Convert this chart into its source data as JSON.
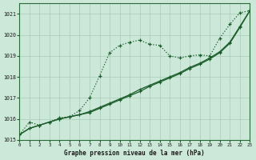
{
  "xlabel": "Graphe pression niveau de la mer (hPa)",
  "xlim": [
    0,
    23
  ],
  "ylim": [
    1015,
    1021.5
  ],
  "yticks": [
    1015,
    1016,
    1017,
    1018,
    1019,
    1020,
    1021
  ],
  "xticks": [
    0,
    1,
    2,
    3,
    4,
    5,
    6,
    7,
    8,
    9,
    10,
    11,
    12,
    13,
    14,
    15,
    16,
    17,
    18,
    19,
    20,
    21,
    22,
    23
  ],
  "background_color": "#cce8d8",
  "grid_color": "#a8ccb8",
  "line_color": "#1a5c2a",
  "series1_x": [
    0,
    1,
    2,
    3,
    4,
    5,
    6,
    7,
    8,
    9,
    10,
    11,
    12,
    13,
    14,
    15,
    16,
    17,
    18,
    19,
    20,
    21,
    22,
    23
  ],
  "series1_y": [
    1015.25,
    1015.85,
    1015.7,
    1015.85,
    1016.05,
    1016.1,
    1016.4,
    1017.0,
    1018.05,
    1019.15,
    1019.5,
    1019.65,
    1019.75,
    1019.55,
    1019.5,
    1019.0,
    1018.9,
    1019.0,
    1019.05,
    1019.0,
    1019.85,
    1020.5,
    1021.05,
    1021.15
  ],
  "series2_x": [
    0,
    1,
    2,
    3,
    4,
    5,
    6,
    7,
    8,
    9,
    10,
    11,
    12,
    13,
    14,
    15,
    16,
    17,
    18,
    19,
    20,
    21,
    22,
    23
  ],
  "series2_y": [
    1015.25,
    1015.55,
    1015.7,
    1015.85,
    1016.0,
    1016.1,
    1016.2,
    1016.35,
    1016.55,
    1016.75,
    1016.95,
    1017.15,
    1017.4,
    1017.6,
    1017.8,
    1018.0,
    1018.2,
    1018.45,
    1018.65,
    1018.9,
    1019.2,
    1019.65,
    1020.4,
    1021.15
  ],
  "series3_x": [
    0,
    1,
    2,
    3,
    4,
    5,
    6,
    7,
    8,
    9,
    10,
    11,
    12,
    13,
    14,
    15,
    16,
    17,
    18,
    19,
    20,
    21,
    22,
    23
  ],
  "series3_y": [
    1015.25,
    1015.55,
    1015.7,
    1015.85,
    1016.0,
    1016.1,
    1016.2,
    1016.3,
    1016.5,
    1016.7,
    1016.9,
    1017.1,
    1017.3,
    1017.55,
    1017.75,
    1017.95,
    1018.15,
    1018.4,
    1018.6,
    1018.85,
    1019.15,
    1019.6,
    1020.35,
    1021.15
  ]
}
